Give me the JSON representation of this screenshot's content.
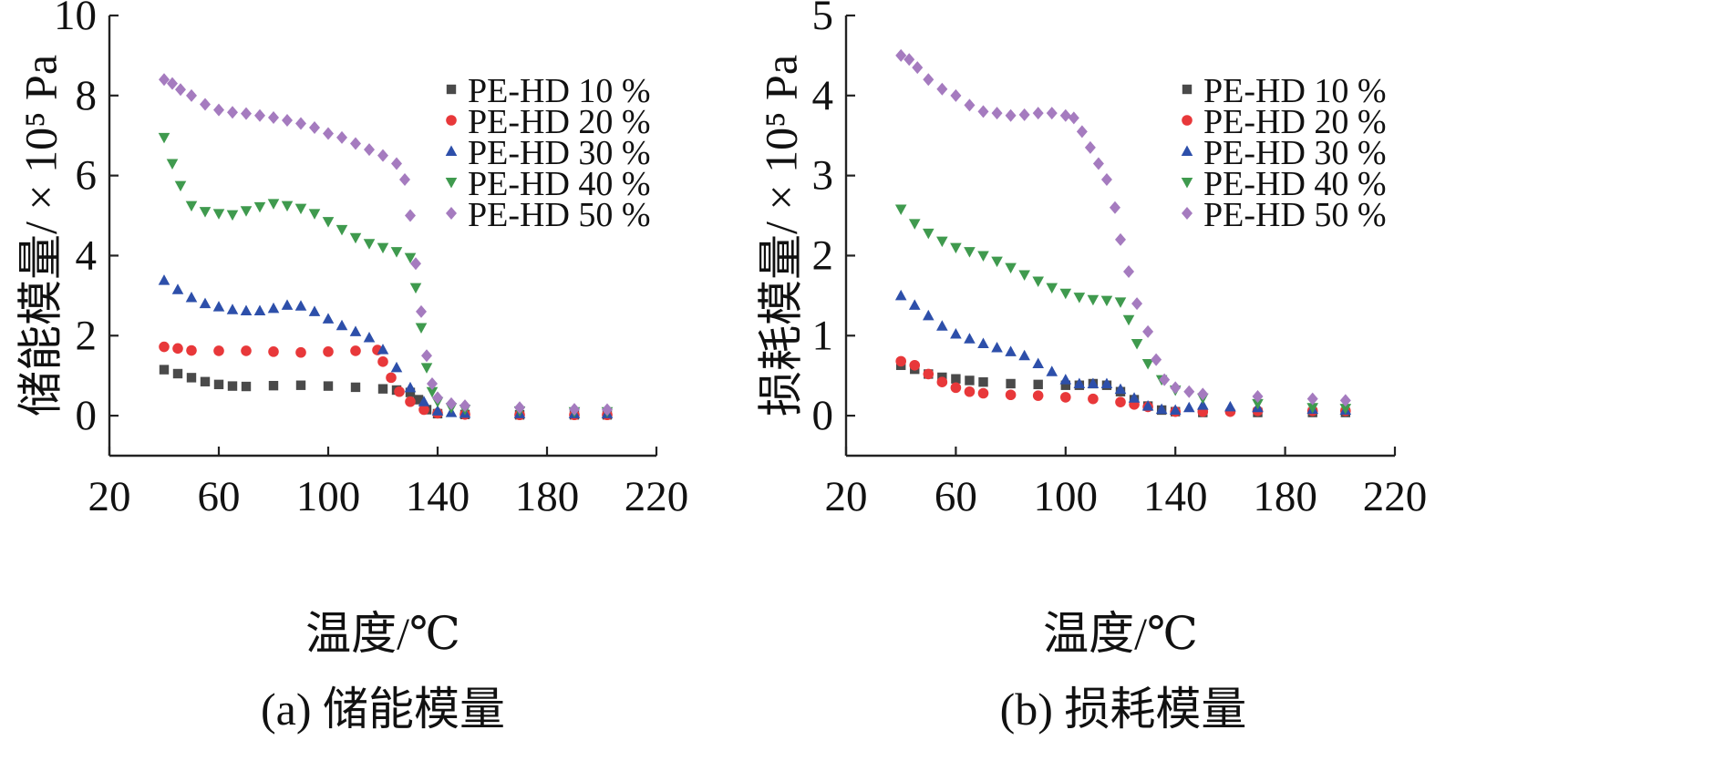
{
  "figure": {
    "caption_a": "(a) 储能模量",
    "caption_b": "(b) 损耗模量"
  },
  "chart_data": [
    {
      "type": "scatter",
      "title": "",
      "caption": "(a) 储能模量",
      "xlabel": "温度/℃",
      "ylabel": "储能模量/ × 10⁵ Pa",
      "xlim": [
        20,
        220
      ],
      "ylim": [
        -1,
        10
      ],
      "xticks": [
        "20",
        "60",
        "100",
        "140",
        "180",
        "220"
      ],
      "yticks": [
        "0",
        "2",
        "4",
        "6",
        "8",
        "10"
      ],
      "legend_position": "top-right",
      "series": [
        {
          "name": "PE-HD 10 %",
          "color": "#4a4a4a",
          "marker": "square",
          "x": [
            40,
            45,
            50,
            55,
            60,
            65,
            70,
            80,
            90,
            100,
            110,
            120,
            125,
            130,
            133,
            136,
            140,
            150,
            170,
            190,
            202
          ],
          "y": [
            1.15,
            1.05,
            0.95,
            0.85,
            0.78,
            0.74,
            0.73,
            0.75,
            0.76,
            0.74,
            0.71,
            0.67,
            0.64,
            0.58,
            0.4,
            0.15,
            0.05,
            0.03,
            0.02,
            0.02,
            0.02
          ]
        },
        {
          "name": "PE-HD 20 %",
          "color": "#e8383a",
          "marker": "circle",
          "x": [
            40,
            45,
            50,
            60,
            70,
            80,
            90,
            100,
            110,
            118,
            120,
            123,
            126,
            130,
            135,
            140,
            150,
            170,
            190,
            202
          ],
          "y": [
            1.72,
            1.68,
            1.63,
            1.62,
            1.62,
            1.6,
            1.58,
            1.6,
            1.62,
            1.64,
            1.35,
            0.95,
            0.6,
            0.35,
            0.15,
            0.06,
            0.03,
            0.02,
            0.02,
            0.02
          ]
        },
        {
          "name": "PE-HD 30 %",
          "color": "#2d4faa",
          "marker": "triangle-up",
          "x": [
            40,
            45,
            50,
            55,
            60,
            65,
            70,
            75,
            80,
            85,
            90,
            95,
            100,
            105,
            110,
            115,
            120,
            125,
            130,
            135,
            140,
            145,
            150,
            170,
            190,
            202
          ],
          "y": [
            3.38,
            3.15,
            2.95,
            2.8,
            2.72,
            2.65,
            2.62,
            2.62,
            2.68,
            2.76,
            2.74,
            2.6,
            2.42,
            2.25,
            2.1,
            1.95,
            1.65,
            1.2,
            0.7,
            0.35,
            0.12,
            0.08,
            0.06,
            0.05,
            0.05,
            0.05
          ]
        },
        {
          "name": "PE-HD 40 %",
          "color": "#3f9a4e",
          "marker": "triangle-down",
          "x": [
            40,
            43,
            46,
            50,
            55,
            60,
            65,
            70,
            75,
            80,
            85,
            90,
            95,
            100,
            105,
            110,
            115,
            120,
            125,
            130,
            132,
            134,
            136,
            138,
            140,
            145,
            150,
            170,
            190,
            202
          ],
          "y": [
            6.95,
            6.3,
            5.75,
            5.25,
            5.1,
            5.05,
            5.02,
            5.12,
            5.22,
            5.3,
            5.25,
            5.18,
            5.05,
            4.85,
            4.65,
            4.45,
            4.3,
            4.2,
            4.1,
            3.95,
            3.2,
            2.2,
            1.2,
            0.6,
            0.35,
            0.2,
            0.16,
            0.12,
            0.1,
            0.1
          ]
        },
        {
          "name": "PE-HD 50 %",
          "color": "#a57bbf",
          "marker": "diamond",
          "x": [
            40,
            43,
            46,
            50,
            55,
            60,
            65,
            70,
            75,
            80,
            85,
            90,
            95,
            100,
            105,
            110,
            115,
            120,
            125,
            128,
            130,
            132,
            134,
            136,
            138,
            140,
            145,
            150,
            170,
            190,
            202
          ],
          "y": [
            8.4,
            8.3,
            8.15,
            8.0,
            7.78,
            7.64,
            7.58,
            7.55,
            7.5,
            7.45,
            7.38,
            7.3,
            7.2,
            7.05,
            6.95,
            6.8,
            6.65,
            6.5,
            6.3,
            5.9,
            5.0,
            3.8,
            2.6,
            1.5,
            0.8,
            0.45,
            0.3,
            0.25,
            0.2,
            0.16,
            0.15
          ]
        }
      ]
    },
    {
      "type": "scatter",
      "title": "",
      "caption": "(b) 损耗模量",
      "xlabel": "温度/℃",
      "ylabel": "损耗模量/ × 10⁵ Pa",
      "xlim": [
        20,
        220
      ],
      "ylim": [
        -0.5,
        5
      ],
      "xticks": [
        "20",
        "60",
        "100",
        "140",
        "180",
        "220"
      ],
      "yticks": [
        "0",
        "1",
        "2",
        "3",
        "4",
        "5"
      ],
      "legend_position": "top-right",
      "series": [
        {
          "name": "PE-HD 10 %",
          "color": "#4a4a4a",
          "marker": "square",
          "x": [
            40,
            45,
            50,
            55,
            60,
            65,
            70,
            80,
            90,
            100,
            105,
            110,
            115,
            120,
            125,
            130,
            135,
            140,
            150,
            170,
            190,
            202
          ],
          "y": [
            0.63,
            0.58,
            0.52,
            0.48,
            0.46,
            0.44,
            0.42,
            0.4,
            0.39,
            0.38,
            0.38,
            0.4,
            0.38,
            0.3,
            0.2,
            0.12,
            0.07,
            0.05,
            0.04,
            0.04,
            0.04,
            0.04
          ]
        },
        {
          "name": "PE-HD 20 %",
          "color": "#e8383a",
          "marker": "circle",
          "x": [
            40,
            45,
            50,
            55,
            60,
            65,
            70,
            80,
            90,
            100,
            110,
            120,
            125,
            130,
            140,
            150,
            160,
            170,
            190,
            202
          ],
          "y": [
            0.68,
            0.63,
            0.52,
            0.42,
            0.35,
            0.3,
            0.28,
            0.26,
            0.25,
            0.23,
            0.21,
            0.17,
            0.14,
            0.11,
            0.05,
            0.05,
            0.05,
            0.06,
            0.06,
            0.06
          ]
        },
        {
          "name": "PE-HD 30 %",
          "color": "#2d4faa",
          "marker": "triangle-up",
          "x": [
            40,
            45,
            50,
            55,
            60,
            65,
            70,
            75,
            80,
            85,
            90,
            95,
            100,
            105,
            110,
            115,
            120,
            125,
            130,
            135,
            140,
            145,
            150,
            160,
            170,
            190,
            202
          ],
          "y": [
            1.5,
            1.38,
            1.25,
            1.12,
            1.02,
            0.96,
            0.9,
            0.85,
            0.8,
            0.75,
            0.65,
            0.55,
            0.45,
            0.4,
            0.4,
            0.4,
            0.33,
            0.22,
            0.12,
            0.08,
            0.07,
            0.1,
            0.13,
            0.11,
            0.1,
            0.08,
            0.07
          ]
        },
        {
          "name": "PE-HD 40 %",
          "color": "#3f9a4e",
          "marker": "triangle-down",
          "x": [
            40,
            45,
            50,
            55,
            60,
            65,
            70,
            75,
            80,
            85,
            90,
            95,
            100,
            105,
            110,
            115,
            120,
            123,
            126,
            130,
            135,
            140,
            150,
            170,
            190,
            202
          ],
          "y": [
            2.58,
            2.4,
            2.28,
            2.18,
            2.1,
            2.05,
            2.0,
            1.93,
            1.85,
            1.76,
            1.68,
            1.6,
            1.53,
            1.48,
            1.45,
            1.44,
            1.42,
            1.2,
            0.9,
            0.65,
            0.45,
            0.32,
            0.22,
            0.15,
            0.1,
            0.09
          ]
        },
        {
          "name": "PE-HD 50 %",
          "color": "#a57bbf",
          "marker": "diamond",
          "x": [
            40,
            43,
            46,
            50,
            55,
            60,
            65,
            70,
            75,
            80,
            85,
            90,
            95,
            100,
            103,
            106,
            109,
            112,
            115,
            118,
            120,
            123,
            126,
            130,
            133,
            136,
            140,
            145,
            150,
            170,
            190,
            202
          ],
          "y": [
            4.5,
            4.45,
            4.35,
            4.2,
            4.08,
            4.0,
            3.88,
            3.8,
            3.78,
            3.75,
            3.76,
            3.78,
            3.78,
            3.75,
            3.72,
            3.55,
            3.35,
            3.15,
            2.95,
            2.6,
            2.2,
            1.8,
            1.4,
            1.05,
            0.7,
            0.45,
            0.35,
            0.3,
            0.27,
            0.24,
            0.21,
            0.19
          ]
        }
      ]
    }
  ]
}
